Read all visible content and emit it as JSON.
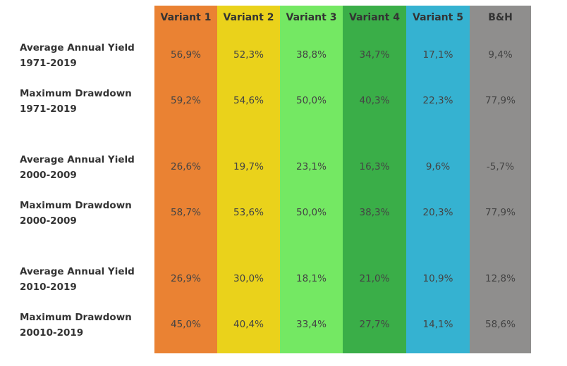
{
  "columns": [
    {
      "label": "Variant 1",
      "color": "#ea8233"
    },
    {
      "label": "Variant 2",
      "color": "#ead21b"
    },
    {
      "label": "Variant 3",
      "color": "#74e863"
    },
    {
      "label": "Variant 4",
      "color": "#3aae48"
    },
    {
      "label": "Variant 5",
      "color": "#35b2d1"
    },
    {
      "label": "B&H",
      "color": "#8f8e8d"
    }
  ],
  "rows": [
    {
      "label": "Average Annual Yield 1971-2019",
      "values": [
        "56,9%",
        "52,3%",
        "38,8%",
        "34,7%",
        "17,1%",
        "9,4%"
      ]
    },
    {
      "label": "Maximum Drawdown 1971-2019",
      "values": [
        "59,2%",
        "54,6%",
        "50,0%",
        "40,3%",
        "22,3%",
        "77,9%"
      ]
    },
    {
      "label": "Average Annual Yield 2000-2009",
      "values": [
        "26,6%",
        "19,7%",
        "23,1%",
        "16,3%",
        "9,6%",
        "-5,7%"
      ]
    },
    {
      "label": "Maximum Drawdown 2000-2009",
      "values": [
        "58,7%",
        "53,6%",
        "50,0%",
        "38,3%",
        "20,3%",
        "77,9%"
      ]
    },
    {
      "label": "Average Annual Yield 2010-2019",
      "values": [
        "26,9%",
        "30,0%",
        "18,1%",
        "21,0%",
        "10,9%",
        "12,8%"
      ]
    },
    {
      "label": "Maximum Drawdown 20010-2019",
      "values": [
        "45,0%",
        "40,4%",
        "33,4%",
        "27,7%",
        "14,1%",
        "58,6%"
      ]
    }
  ]
}
